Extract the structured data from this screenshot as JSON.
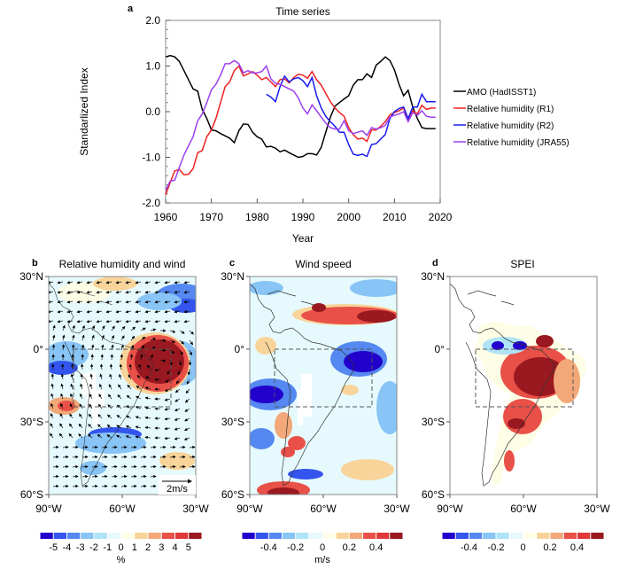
{
  "chart_data": [
    {
      "panel": "a",
      "type": "line",
      "title": "Time series",
      "xlabel": "Year",
      "ylabel": "Standarlized Index",
      "xlim": [
        1960,
        2020
      ],
      "ylim": [
        -2.0,
        2.0
      ],
      "xticks": [
        1960,
        1970,
        1980,
        1990,
        2000,
        2010,
        2020
      ],
      "xtick_labels": [
        "1960",
        "1970",
        "1980",
        "1990",
        "2000",
        "2010",
        "2020"
      ],
      "yticks": [
        -2.0,
        -1.0,
        0.0,
        1.0,
        2.0
      ],
      "ytick_labels": [
        "-2.0",
        "-1.0",
        "0.0",
        "1.0",
        "2.0"
      ],
      "legend_position": "right",
      "series": [
        {
          "name": "AMO (HadISST1)",
          "color": "#000000",
          "start_year": 1960,
          "values": [
            1.2,
            1.23,
            1.2,
            1.1,
            0.9,
            0.7,
            0.5,
            0.45,
            0.05,
            -0.15,
            -0.4,
            -0.42,
            -0.48,
            -0.53,
            -0.58,
            -0.68,
            -0.42,
            -0.27,
            -0.28,
            -0.45,
            -0.55,
            -0.6,
            -0.77,
            -0.76,
            -0.8,
            -0.88,
            -0.84,
            -0.9,
            -0.95,
            -1.0,
            -0.98,
            -0.92,
            -0.92,
            -0.95,
            -0.78,
            -0.45,
            -0.12,
            0.12,
            0.2,
            0.28,
            0.35,
            0.58,
            0.7,
            0.7,
            0.83,
            0.75,
            1.02,
            1.1,
            1.2,
            1.12,
            0.92,
            0.6,
            0.35,
            0.47,
            0.1,
            -0.15,
            -0.35,
            -0.37,
            -0.37,
            -0.37
          ]
        },
        {
          "name": "Relative humidity (R1)",
          "color": "#ee2222",
          "start_year": 1960,
          "values": [
            -1.82,
            -1.55,
            -1.3,
            -1.27,
            -1.38,
            -1.37,
            -1.25,
            -0.9,
            -0.85,
            -0.55,
            -0.4,
            -0.15,
            0.2,
            0.55,
            0.65,
            0.9,
            1.0,
            0.78,
            0.83,
            0.88,
            0.8,
            0.7,
            0.75,
            0.65,
            0.55,
            0.7,
            0.72,
            0.63,
            0.75,
            0.82,
            0.8,
            0.73,
            0.88,
            0.7,
            0.58,
            0.4,
            0.22,
            0.08,
            -0.02,
            -0.1,
            -0.35,
            -0.5,
            -0.6,
            -0.58,
            -0.65,
            -0.4,
            -0.4,
            -0.32,
            -0.22,
            -0.07,
            -0.02,
            0.02,
            0.08,
            -0.18,
            0.02,
            -0.05,
            0.14,
            0.05,
            0.08,
            0.08
          ]
        },
        {
          "name": "Relative humidity (R2)",
          "color": "#1a1aee",
          "start_year": 1982,
          "values": [
            0.38,
            0.32,
            0.22,
            0.55,
            0.78,
            0.65,
            0.72,
            0.75,
            0.68,
            0.55,
            0.75,
            0.35,
            0.08,
            -0.1,
            -0.22,
            -0.32,
            -0.45,
            -0.45,
            -0.72,
            -0.93,
            -0.96,
            -0.93,
            -0.98,
            -0.72,
            -0.7,
            -0.6,
            -0.5,
            -0.15,
            0.0,
            0.07,
            0.1,
            -0.15,
            0.1,
            0.1,
            0.38,
            0.22,
            0.22,
            0.22
          ]
        },
        {
          "name": "Relative humidity (JRA55)",
          "color": "#9b3ff0",
          "start_year": 1960,
          "values": [
            -1.72,
            -1.52,
            -1.5,
            -1.22,
            -0.95,
            -0.75,
            -0.55,
            -0.2,
            -0.05,
            0.2,
            0.48,
            0.6,
            0.8,
            1.05,
            1.05,
            1.12,
            1.05,
            0.85,
            0.9,
            0.85,
            0.85,
            0.88,
            1.0,
            0.72,
            0.62,
            0.6,
            0.55,
            0.5,
            0.45,
            0.3,
            0.08,
            -0.05,
            0.15,
            0.02,
            -0.12,
            -0.25,
            -0.35,
            -0.38,
            -0.38,
            -0.2,
            -0.42,
            -0.48,
            -0.45,
            -0.42,
            -0.52,
            -0.35,
            -0.38,
            -0.35,
            -0.3,
            -0.12,
            -0.08,
            -0.05,
            0.0,
            -0.22,
            -0.02,
            -0.08,
            0.02,
            -0.1,
            -0.12,
            -0.12
          ]
        }
      ]
    },
    {
      "panel": "b",
      "type": "heatmap",
      "title": "Relative humidity and wind",
      "lon_ticks": [
        "90°W",
        "60°W",
        "30°W"
      ],
      "lat_ticks": [
        "30°N",
        "0°",
        "30°S",
        "60°S"
      ],
      "reference_vector_label": "2m/s",
      "colorbar": {
        "labels": [
          "-5",
          "-4",
          "-3",
          "-2",
          "-1",
          "0",
          "1",
          "2",
          "3",
          "4",
          "5"
        ],
        "unit": "%",
        "colors": [
          "#2200cc",
          "#3355ee",
          "#5588f0",
          "#88c4f5",
          "#aee3f8",
          "#e6fafe",
          "#fefde6",
          "#f8d49a",
          "#f2a878",
          "#e85048",
          "#e03838",
          "#9a1820"
        ]
      },
      "features": [
        "positive anomaly (dark red) over eastern Amazon/northeast Brazil",
        "negative anomaly (blue) off Pacific coast near 15°S-25°S",
        "anticyclonic wind circulation over central South America",
        "dashed box 5°S-28°S, 80°W-40°W"
      ]
    },
    {
      "panel": "c",
      "type": "heatmap",
      "title": "Wind speed",
      "lon_ticks": [
        "90°W",
        "60°W",
        "30°W"
      ],
      "lat_ticks": [
        "30°N",
        "0°",
        "30°S",
        "60°S"
      ],
      "colorbar": {
        "labels": [
          "-0.4",
          "-0.2",
          "0",
          "0.2",
          "0.4"
        ],
        "unit": "m/s",
        "colors": [
          "#2200cc",
          "#3355ee",
          "#5588f0",
          "#88c4f5",
          "#aee3f8",
          "#e6fafe",
          "#fefde6",
          "#f8d49a",
          "#f2a878",
          "#e85048",
          "#e03838",
          "#9a1820"
        ]
      },
      "features": [
        "positive anomaly band over Caribbean / tropical North Atlantic 10°N-20°N",
        "negative anomaly (dark blue) over NE Brazil near 5°S",
        "negative anomaly over SE Pacific near 20°S",
        "positive anomaly near 60°S"
      ]
    },
    {
      "panel": "d",
      "type": "heatmap",
      "title": "SPEI",
      "lon_ticks": [
        "90°W",
        "60°W",
        "30°W"
      ],
      "lat_ticks": [
        "30°N",
        "0°",
        "30°S",
        "60°S"
      ],
      "colorbar": {
        "labels": [
          "-0.4",
          "-0.2",
          "0",
          "0.2",
          "0.4"
        ],
        "unit": "",
        "colors": [
          "#2200cc",
          "#3355ee",
          "#5588f0",
          "#88c4f5",
          "#aee3f8",
          "#e6fafe",
          "#fefde6",
          "#f8d49a",
          "#f2a878",
          "#e85048",
          "#e03838",
          "#9a1820"
        ]
      },
      "features": [
        "strong positive SPEI (dark red) over central Brazil",
        "negative SPEI (blue) in northwestern Amazon near 0°",
        "dashed box 5°S-28°S, 80°W-40°W"
      ]
    }
  ],
  "panels": {
    "a_label": "a",
    "b_label": "b",
    "c_label": "c",
    "d_label": "d"
  }
}
